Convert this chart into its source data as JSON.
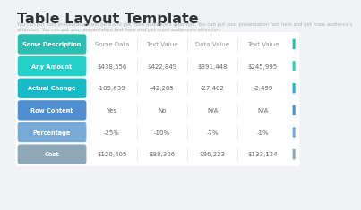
{
  "title": "Table Layout Template",
  "subtitle": "You can put your presentation text here and get more audience's attention. You can put your presentation text here and get more audience's\nattention. You can put your presentation text here and get more audience's attention.",
  "bg_color": "#f0f2f5",
  "rows": [
    {
      "label": "Some Description",
      "values": [
        "Some Data",
        "Text Value",
        "Data Value",
        "Text Value"
      ],
      "label_color": "#2bbfb3",
      "accent_color": "#2bbfb3",
      "is_header": true
    },
    {
      "label": "Any Amount",
      "values": [
        "$438,556",
        "$422,849",
        "$391,448",
        "$245,995"
      ],
      "label_color": "#22cfc9",
      "accent_color": "#22cfc9",
      "is_header": false
    },
    {
      "label": "Actual Change",
      "values": [
        "-109,639",
        "-42,285",
        "-27,402",
        "-2,459"
      ],
      "label_color": "#17bbc8",
      "accent_color": "#17bbc8",
      "is_header": false
    },
    {
      "label": "Row Content",
      "values": [
        "Yes",
        "No",
        "N/A",
        "N/A"
      ],
      "label_color": "#5090d0",
      "accent_color": "#5090d0",
      "is_header": false
    },
    {
      "label": "Percentage",
      "values": [
        "-25%",
        "-10%",
        "-7%",
        "-1%"
      ],
      "label_color": "#78aad8",
      "accent_color": "#78aad8",
      "is_header": false
    },
    {
      "label": "Cost",
      "values": [
        "$120,405",
        "$88,306",
        "$96,223",
        "$133,124"
      ],
      "label_color": "#8fa8b8",
      "accent_color": "#8fa8b8",
      "is_header": false
    }
  ],
  "title_color": "#2d3436",
  "subtitle_color": "#b0b0b0",
  "cell_text_color": "#666666",
  "header_text_color": "#999999",
  "divider_color": "#e8e8e8"
}
